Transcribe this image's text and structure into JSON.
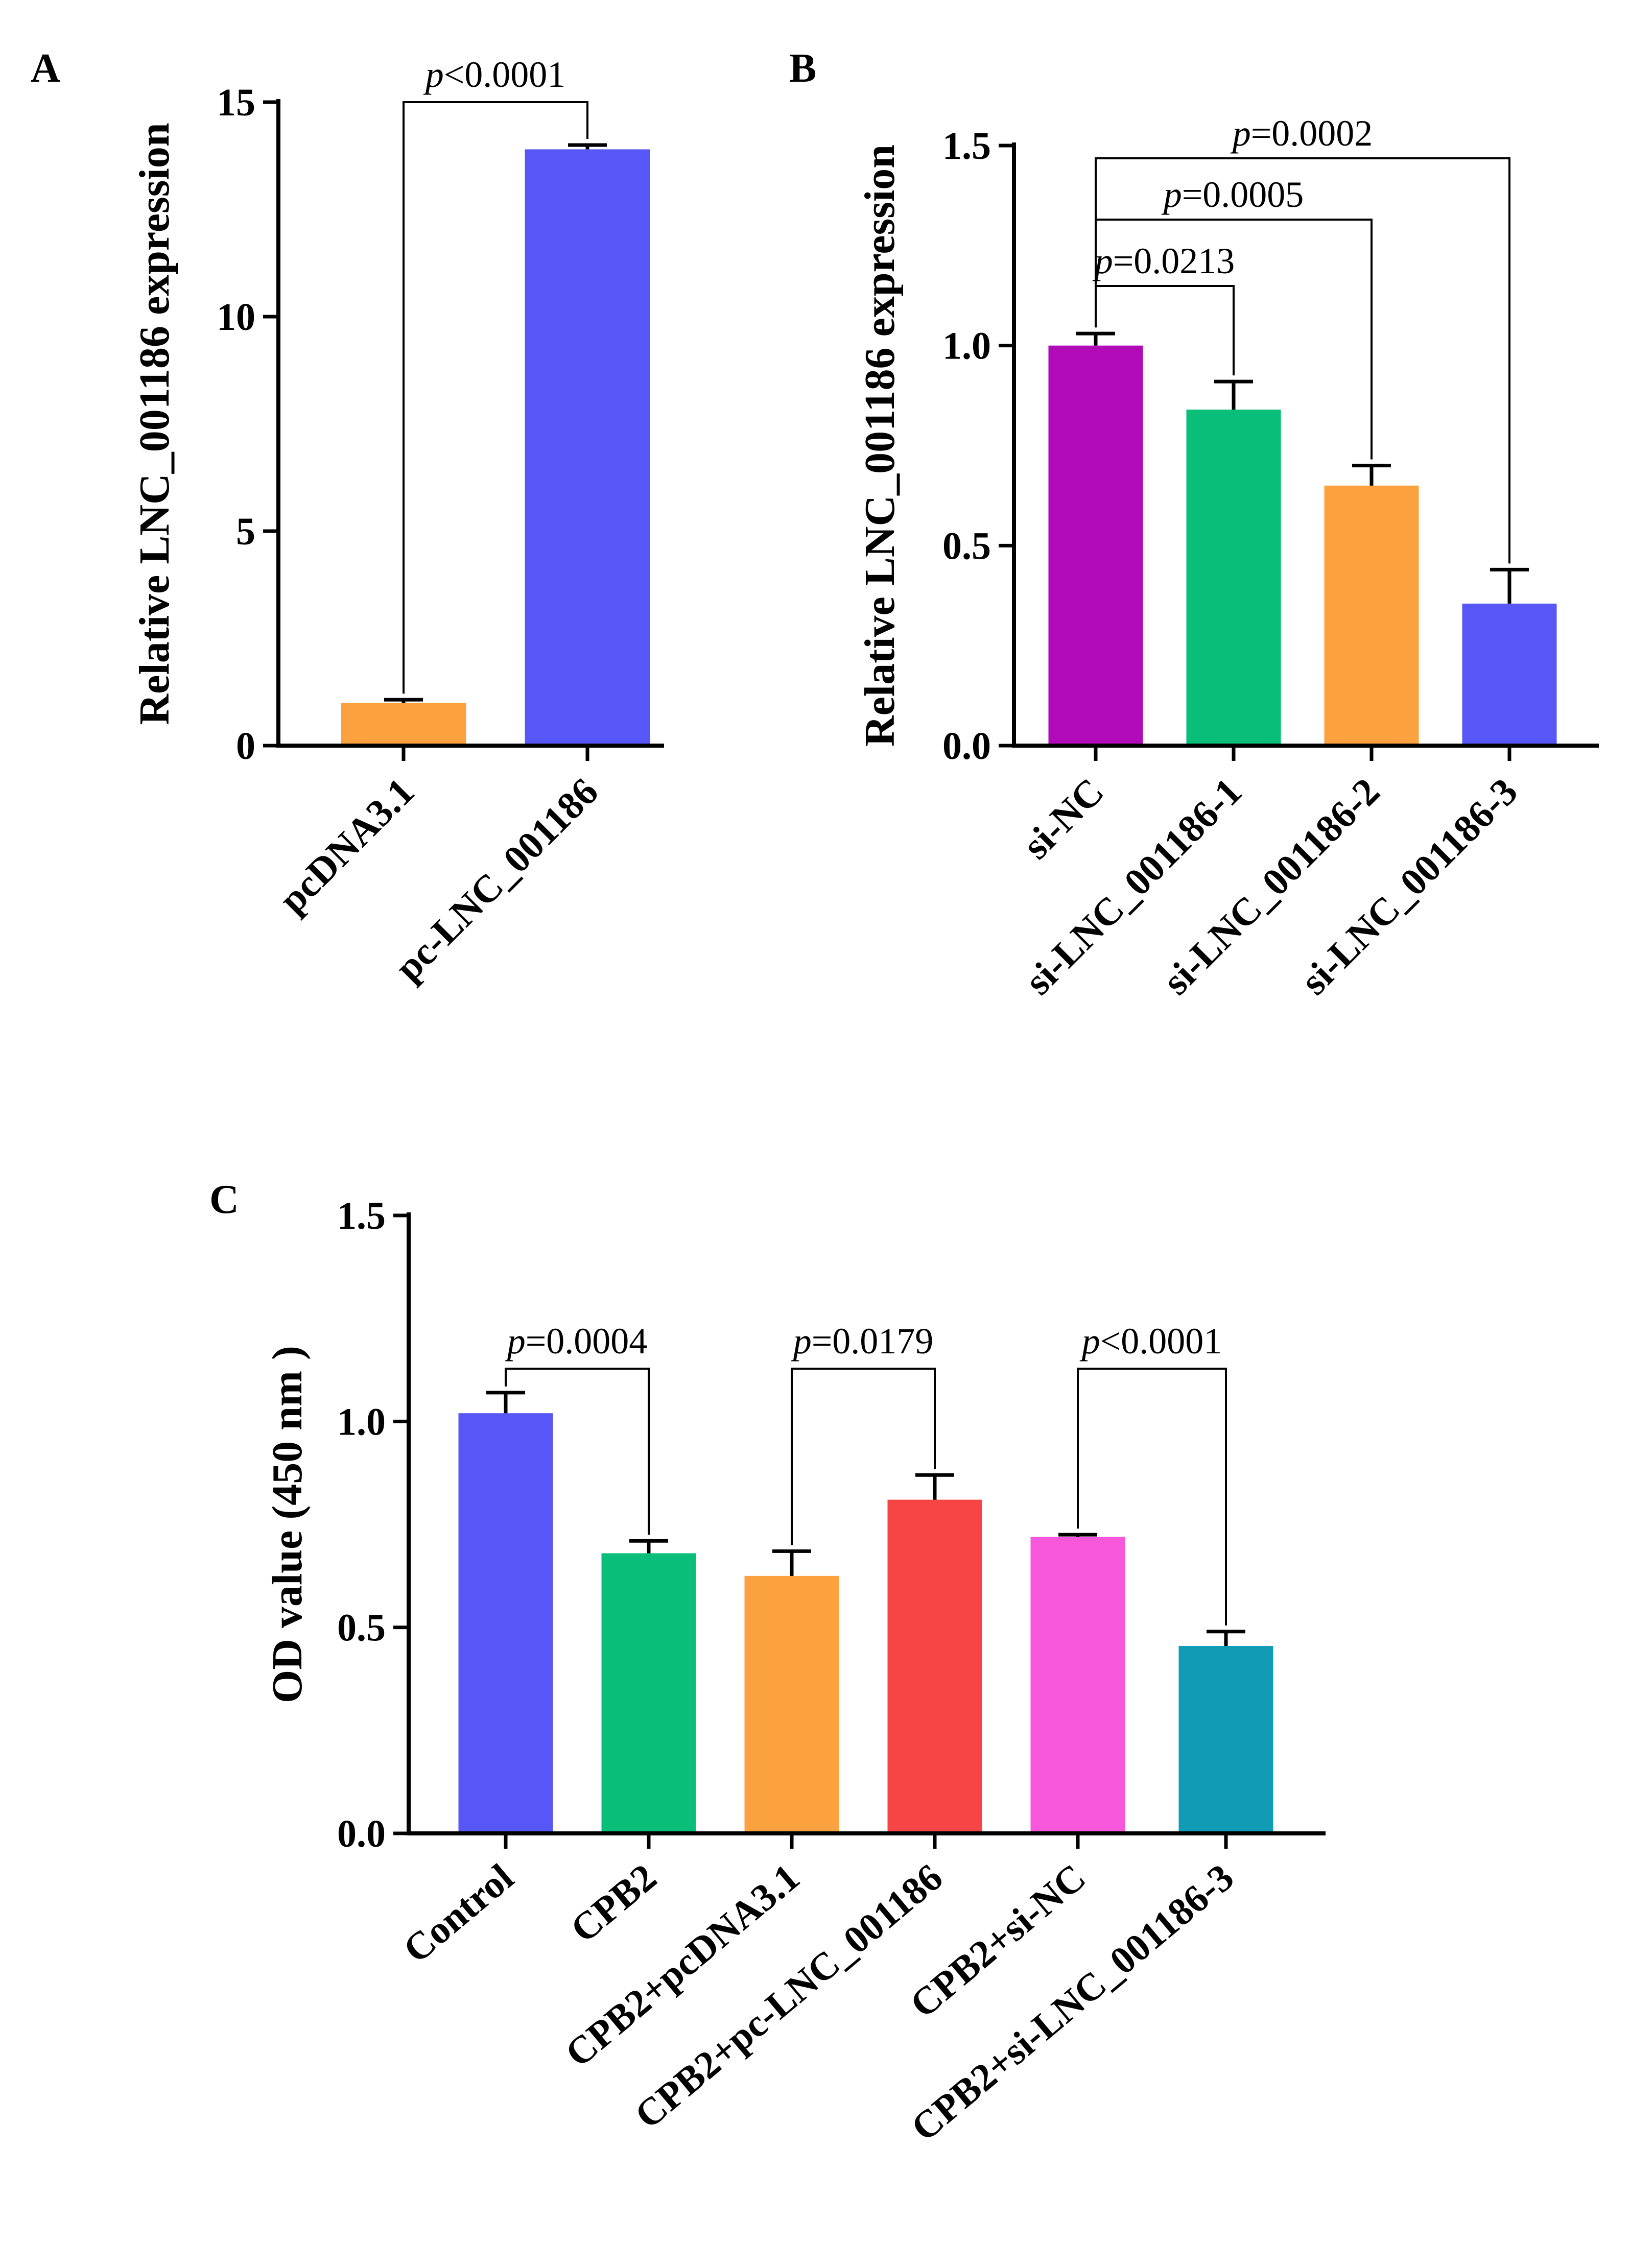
{
  "chart_data": [
    {
      "panel": "A",
      "type": "bar",
      "ylabel": "Relative LNC_001186 expression",
      "ylim": [
        0,
        15
      ],
      "yticks": [
        0,
        5,
        10,
        15
      ],
      "ytick_labels": [
        "0",
        "5",
        "10",
        "15"
      ],
      "categories": [
        "pcDNA3.1",
        "pc-LNC_001186"
      ],
      "values": [
        1.0,
        13.9
      ],
      "errors": [
        0.07,
        0.1
      ],
      "colors": [
        "#FBA13F",
        "#5757F7"
      ],
      "comparisons": [
        {
          "from": 0,
          "to": 1,
          "p_prefix": "p",
          "p_rest": "<0.0001"
        }
      ]
    },
    {
      "panel": "B",
      "type": "bar",
      "ylabel": "Relative LNC_001186 expression",
      "ylim": [
        0,
        1.5
      ],
      "yticks": [
        0,
        0.5,
        1.0,
        1.5
      ],
      "ytick_labels": [
        "0.0",
        "0.5",
        "1.0",
        "1.5"
      ],
      "categories": [
        "si-NC",
        "si-LNC_001186-1",
        "si-LNC_001186-2",
        "si-LNC_001186-3"
      ],
      "values": [
        1.0,
        0.84,
        0.65,
        0.355
      ],
      "errors": [
        0.03,
        0.07,
        0.05,
        0.085
      ],
      "colors": [
        "#B10AB9",
        "#09BE78",
        "#FBA13F",
        "#5757F7"
      ],
      "comparisons": [
        {
          "from": 0,
          "to": 1,
          "p_prefix": "p",
          "p_rest": "=0.0213"
        },
        {
          "from": 0,
          "to": 2,
          "p_prefix": "p",
          "p_rest": "=0.0005"
        },
        {
          "from": 0,
          "to": 3,
          "p_prefix": "p",
          "p_rest": "=0.0002"
        }
      ]
    },
    {
      "panel": "C",
      "type": "bar",
      "ylabel": "OD value (450 nm )",
      "ylim": [
        0,
        1.5
      ],
      "yticks": [
        0,
        0.5,
        1.0,
        1.5
      ],
      "ytick_labels": [
        "0.0",
        "0.5",
        "1.0",
        "1.5"
      ],
      "categories": [
        "Control",
        "CPB2",
        "CPB2+pcDNA3.1",
        "CPB2+pc-LNC_001186",
        "CPB2+si-NC",
        "CPB2+si-LNC_001186-3"
      ],
      "values": [
        1.02,
        0.68,
        0.625,
        0.81,
        0.72,
        0.455
      ],
      "errors": [
        0.05,
        0.03,
        0.06,
        0.06,
        0.005,
        0.035
      ],
      "colors": [
        "#5757F7",
        "#09BE78",
        "#FBA13F",
        "#F74444",
        "#F757DB",
        "#119CB6"
      ],
      "comparisons": [
        {
          "from": 0,
          "to": 1,
          "p_prefix": "p",
          "p_rest": "=0.0004"
        },
        {
          "from": 2,
          "to": 3,
          "p_prefix": "p",
          "p_rest": "=0.0179"
        },
        {
          "from": 4,
          "to": 5,
          "p_prefix": "p",
          "p_rest": "<0.0001"
        }
      ]
    }
  ]
}
